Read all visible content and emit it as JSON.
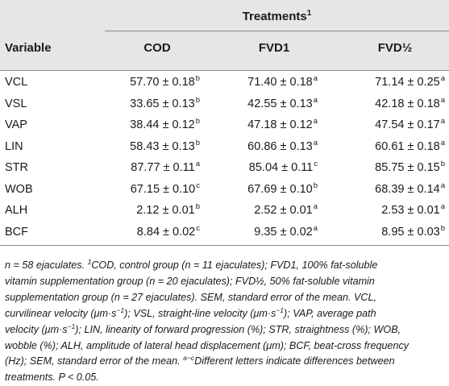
{
  "table": {
    "treatments_label": "Treatments",
    "treatments_sup": "1",
    "variable_header": "Variable",
    "columns": [
      "COD",
      "FVD1",
      "FVD½"
    ],
    "rows": [
      {
        "variable": "VCL",
        "cells": [
          {
            "v": "57.70 ± 0.18",
            "s": "b"
          },
          {
            "v": "71.40 ± 0.18",
            "s": "a"
          },
          {
            "v": "71.14 ± 0.25",
            "s": "a"
          }
        ]
      },
      {
        "variable": "VSL",
        "cells": [
          {
            "v": "33.65 ± 0.13",
            "s": "b"
          },
          {
            "v": "42.55 ± 0.13",
            "s": "a"
          },
          {
            "v": "42.18 ± 0.18",
            "s": "a"
          }
        ]
      },
      {
        "variable": "VAP",
        "cells": [
          {
            "v": "38.44 ± 0.12",
            "s": "b"
          },
          {
            "v": "47.18 ± 0.12",
            "s": "a"
          },
          {
            "v": "47.54 ± 0.17",
            "s": "a"
          }
        ]
      },
      {
        "variable": "LIN",
        "cells": [
          {
            "v": "58.43 ± 0.13",
            "s": "b"
          },
          {
            "v": "60.86 ± 0.13",
            "s": "a"
          },
          {
            "v": "60.61 ± 0.18",
            "s": "a"
          }
        ]
      },
      {
        "variable": "STR",
        "cells": [
          {
            "v": "87.77 ± 0.11",
            "s": "a"
          },
          {
            "v": "85.04 ± 0.11",
            "s": "c"
          },
          {
            "v": "85.75 ± 0.15",
            "s": "b"
          }
        ]
      },
      {
        "variable": "WOB",
        "cells": [
          {
            "v": "67.15 ± 0.10",
            "s": "c"
          },
          {
            "v": "67.69 ± 0.10",
            "s": "b"
          },
          {
            "v": "68.39 ± 0.14",
            "s": "a"
          }
        ]
      },
      {
        "variable": "ALH",
        "cells": [
          {
            "v": "2.12 ± 0.01",
            "s": "b"
          },
          {
            "v": "2.52 ± 0.01",
            "s": "a"
          },
          {
            "v": "2.53 ± 0.01",
            "s": "a"
          }
        ]
      },
      {
        "variable": "BCF",
        "cells": [
          {
            "v": "8.84 ± 0.02",
            "s": "c"
          },
          {
            "v": "9.35 ± 0.02",
            "s": "a"
          },
          {
            "v": "8.95 ± 0.03",
            "s": "b"
          }
        ]
      }
    ]
  },
  "footnote": {
    "line1_a": "n = 58 ejaculates. ",
    "line1_sup": "1",
    "line1_b": "COD, control group (n = 11 ejaculates); FVD1, 100% fat-soluble",
    "line2": "vitamin supplementation group (n = 20 ejaculates); FVD½, 50% fat-soluble vitamin",
    "line3": "supplementation group (n = 27 ejaculates). SEM, standard error of the mean. VCL,",
    "line4_a": "curvilinear velocity (μm·s",
    "line4_sup": "−1",
    "line4_b": "); VSL, straight-line velocity (μm·s",
    "line4_sup2": "−1",
    "line4_c": "); VAP, average path",
    "line5_a": "velocity (μm·s",
    "line5_sup": "−1",
    "line5_b": "); LIN, linearity of forward progression (%); STR, straightness (%); WOB,",
    "line6": "wobble (%); ALH, amplitude of lateral head displacement (μm); BCF, beat-cross frequency",
    "line7_a": "(Hz); SEM, standard error of the mean. ",
    "line7_sup": "a−c",
    "line7_b": "Different letters indicate differences between",
    "line8": "treatments. P < 0.05."
  }
}
